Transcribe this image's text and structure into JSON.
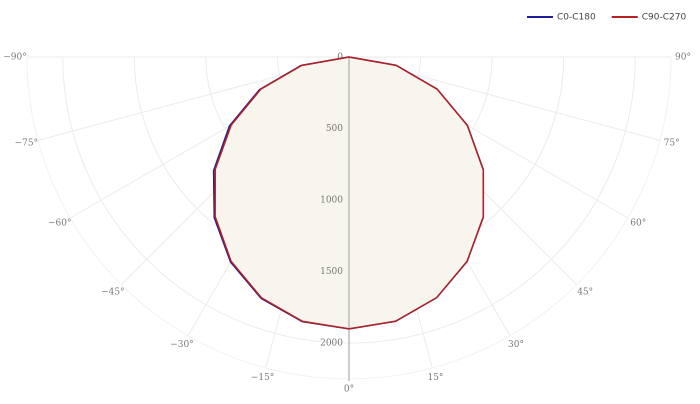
{
  "chart_data": {
    "type": "polar",
    "x": [
      -90,
      -80,
      -70,
      -60,
      -50,
      -40,
      -30,
      -20,
      -10,
      0,
      10,
      20,
      30,
      40,
      50,
      60,
      70,
      80,
      90
    ],
    "series": [
      {
        "name": "C0-C180",
        "color": "#1f1f9a",
        "values": [
          0,
          340,
          665,
          965,
          1235,
          1465,
          1655,
          1795,
          1878,
          1900,
          1875,
          1790,
          1650,
          1460,
          1225,
          955,
          655,
          335,
          0
        ]
      },
      {
        "name": "C90-C270",
        "color": "#b22222",
        "values": [
          0,
          335,
          655,
          950,
          1220,
          1455,
          1648,
          1790,
          1875,
          1900,
          1875,
          1790,
          1650,
          1460,
          1225,
          955,
          655,
          335,
          0
        ]
      }
    ],
    "fill_color": "#f8f5ee",
    "rlim": [
      0,
      2250
    ],
    "rticks": [
      0,
      500,
      1000,
      1500,
      2000
    ],
    "xticks": [
      {
        "value": -90,
        "label": "−90°"
      },
      {
        "value": -75,
        "label": "−75°"
      },
      {
        "value": -60,
        "label": "−60°"
      },
      {
        "value": -45,
        "label": "−45°"
      },
      {
        "value": -30,
        "label": "−30°"
      },
      {
        "value": -15,
        "label": "−15°"
      },
      {
        "value": 0,
        "label": "0°"
      },
      {
        "value": 15,
        "label": "15°"
      },
      {
        "value": 30,
        "label": "30°"
      },
      {
        "value": 45,
        "label": "45°"
      },
      {
        "value": 60,
        "label": "60°"
      },
      {
        "value": 75,
        "label": "75°"
      },
      {
        "value": 90,
        "label": "90°"
      }
    ],
    "grid": true,
    "legend": "top-right"
  }
}
